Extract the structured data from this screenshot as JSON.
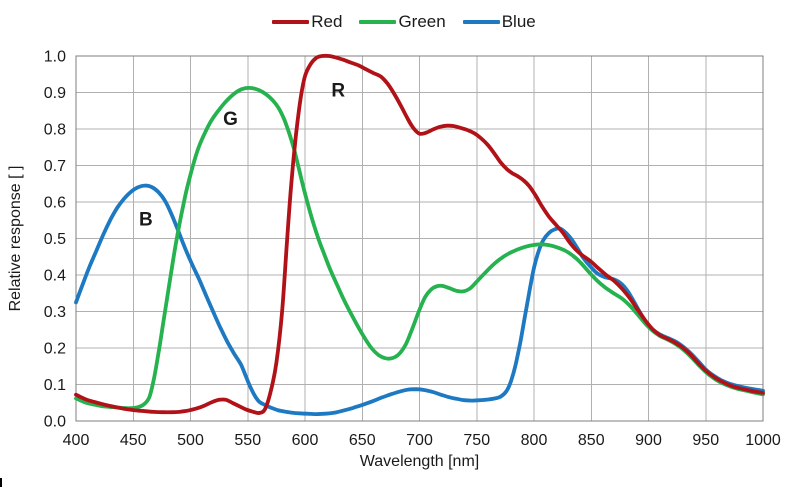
{
  "chart_data": {
    "type": "line",
    "title": "",
    "xlabel": "Wavelength [nm]",
    "ylabel": "Relative response [ ]",
    "xlim": [
      400,
      1000
    ],
    "ylim": [
      0.0,
      1.0
    ],
    "grid": true,
    "legend_position": "top-center",
    "x_ticks": [
      400,
      450,
      500,
      550,
      600,
      650,
      700,
      750,
      800,
      850,
      900,
      950,
      1000
    ],
    "x_tick_labels": [
      "400",
      "450",
      "500",
      "550",
      "600",
      "650",
      "700",
      "750",
      "800",
      "850",
      "900",
      "950",
      "1000"
    ],
    "y_ticks": [
      0.0,
      0.1,
      0.2,
      0.3,
      0.4,
      0.5,
      0.6,
      0.7,
      0.8,
      0.9,
      1.0
    ],
    "y_tick_labels": [
      "0.0",
      "0.1",
      "0.2",
      "0.3",
      "0.4",
      "0.5",
      "0.6",
      "0.7",
      "0.8",
      "0.9",
      "1.0"
    ],
    "series": [
      {
        "name": "Red",
        "color": "#b11218",
        "annotation": {
          "text": "R",
          "x": 629,
          "y": 0.905
        },
        "points": [
          [
            400,
            0.072
          ],
          [
            408,
            0.06
          ],
          [
            415,
            0.053
          ],
          [
            422,
            0.047
          ],
          [
            430,
            0.041
          ],
          [
            438,
            0.036
          ],
          [
            445,
            0.032
          ],
          [
            452,
            0.029
          ],
          [
            460,
            0.027
          ],
          [
            468,
            0.025
          ],
          [
            476,
            0.024
          ],
          [
            484,
            0.024
          ],
          [
            490,
            0.025
          ],
          [
            497,
            0.028
          ],
          [
            505,
            0.034
          ],
          [
            512,
            0.042
          ],
          [
            519,
            0.052
          ],
          [
            525,
            0.058
          ],
          [
            531,
            0.058
          ],
          [
            537,
            0.049
          ],
          [
            543,
            0.04
          ],
          [
            549,
            0.031
          ],
          [
            555,
            0.025
          ],
          [
            560,
            0.022
          ],
          [
            565,
            0.032
          ],
          [
            570,
            0.08
          ],
          [
            575,
            0.16
          ],
          [
            580,
            0.3
          ],
          [
            584,
            0.48
          ],
          [
            588,
            0.65
          ],
          [
            592,
            0.78
          ],
          [
            596,
            0.88
          ],
          [
            600,
            0.945
          ],
          [
            605,
            0.978
          ],
          [
            610,
            0.995
          ],
          [
            615,
            1.0
          ],
          [
            621,
            1.0
          ],
          [
            627,
            0.996
          ],
          [
            633,
            0.99
          ],
          [
            640,
            0.982
          ],
          [
            647,
            0.974
          ],
          [
            653,
            0.964
          ],
          [
            660,
            0.953
          ],
          [
            666,
            0.944
          ],
          [
            672,
            0.925
          ],
          [
            678,
            0.896
          ],
          [
            684,
            0.862
          ],
          [
            690,
            0.826
          ],
          [
            695,
            0.801
          ],
          [
            700,
            0.787
          ],
          [
            706,
            0.79
          ],
          [
            712,
            0.799
          ],
          [
            718,
            0.806
          ],
          [
            724,
            0.809
          ],
          [
            730,
            0.808
          ],
          [
            736,
            0.803
          ],
          [
            742,
            0.797
          ],
          [
            748,
            0.788
          ],
          [
            754,
            0.774
          ],
          [
            760,
            0.755
          ],
          [
            766,
            0.73
          ],
          [
            771,
            0.708
          ],
          [
            776,
            0.691
          ],
          [
            781,
            0.679
          ],
          [
            786,
            0.67
          ],
          [
            791,
            0.659
          ],
          [
            796,
            0.643
          ],
          [
            801,
            0.62
          ],
          [
            807,
            0.588
          ],
          [
            813,
            0.56
          ],
          [
            819,
            0.538
          ],
          [
            825,
            0.517
          ],
          [
            831,
            0.49
          ],
          [
            837,
            0.468
          ],
          [
            843,
            0.452
          ],
          [
            849,
            0.439
          ],
          [
            856,
            0.419
          ],
          [
            863,
            0.4
          ],
          [
            870,
            0.384
          ],
          [
            877,
            0.362
          ],
          [
            884,
            0.335
          ],
          [
            891,
            0.303
          ],
          [
            898,
            0.272
          ],
          [
            904,
            0.25
          ],
          [
            910,
            0.235
          ],
          [
            916,
            0.226
          ],
          [
            922,
            0.217
          ],
          [
            929,
            0.203
          ],
          [
            936,
            0.184
          ],
          [
            943,
            0.16
          ],
          [
            950,
            0.138
          ],
          [
            957,
            0.121
          ],
          [
            964,
            0.108
          ],
          [
            971,
            0.098
          ],
          [
            978,
            0.091
          ],
          [
            985,
            0.086
          ],
          [
            992,
            0.081
          ],
          [
            1000,
            0.077
          ]
        ]
      },
      {
        "name": "Green",
        "color": "#25b24f",
        "annotation": {
          "text": "G",
          "x": 535,
          "y": 0.828
        },
        "points": [
          [
            400,
            0.062
          ],
          [
            408,
            0.051
          ],
          [
            416,
            0.045
          ],
          [
            424,
            0.04
          ],
          [
            432,
            0.038
          ],
          [
            440,
            0.036
          ],
          [
            447,
            0.035
          ],
          [
            453,
            0.037
          ],
          [
            459,
            0.045
          ],
          [
            464,
            0.065
          ],
          [
            468,
            0.115
          ],
          [
            472,
            0.185
          ],
          [
            476,
            0.265
          ],
          [
            480,
            0.345
          ],
          [
            484,
            0.425
          ],
          [
            488,
            0.5
          ],
          [
            492,
            0.565
          ],
          [
            496,
            0.625
          ],
          [
            500,
            0.675
          ],
          [
            504,
            0.72
          ],
          [
            508,
            0.757
          ],
          [
            513,
            0.792
          ],
          [
            518,
            0.822
          ],
          [
            524,
            0.849
          ],
          [
            530,
            0.872
          ],
          [
            536,
            0.891
          ],
          [
            542,
            0.905
          ],
          [
            548,
            0.912
          ],
          [
            554,
            0.912
          ],
          [
            560,
            0.906
          ],
          [
            566,
            0.895
          ],
          [
            572,
            0.878
          ],
          [
            577,
            0.857
          ],
          [
            582,
            0.825
          ],
          [
            586,
            0.79
          ],
          [
            590,
            0.75
          ],
          [
            594,
            0.7
          ],
          [
            598,
            0.648
          ],
          [
            602,
            0.6
          ],
          [
            607,
            0.545
          ],
          [
            612,
            0.497
          ],
          [
            617,
            0.455
          ],
          [
            622,
            0.415
          ],
          [
            628,
            0.373
          ],
          [
            634,
            0.332
          ],
          [
            640,
            0.295
          ],
          [
            646,
            0.26
          ],
          [
            652,
            0.228
          ],
          [
            658,
            0.2
          ],
          [
            664,
            0.181
          ],
          [
            670,
            0.172
          ],
          [
            676,
            0.172
          ],
          [
            682,
            0.183
          ],
          [
            688,
            0.21
          ],
          [
            694,
            0.255
          ],
          [
            700,
            0.305
          ],
          [
            705,
            0.34
          ],
          [
            710,
            0.36
          ],
          [
            715,
            0.369
          ],
          [
            720,
            0.37
          ],
          [
            726,
            0.364
          ],
          [
            732,
            0.357
          ],
          [
            738,
            0.355
          ],
          [
            744,
            0.363
          ],
          [
            750,
            0.382
          ],
          [
            757,
            0.405
          ],
          [
            764,
            0.427
          ],
          [
            771,
            0.445
          ],
          [
            778,
            0.459
          ],
          [
            785,
            0.469
          ],
          [
            792,
            0.477
          ],
          [
            799,
            0.482
          ],
          [
            806,
            0.484
          ],
          [
            813,
            0.482
          ],
          [
            820,
            0.476
          ],
          [
            827,
            0.467
          ],
          [
            834,
            0.453
          ],
          [
            841,
            0.433
          ],
          [
            848,
            0.408
          ],
          [
            855,
            0.385
          ],
          [
            862,
            0.366
          ],
          [
            870,
            0.349
          ],
          [
            877,
            0.335
          ],
          [
            884,
            0.315
          ],
          [
            891,
            0.29
          ],
          [
            898,
            0.264
          ],
          [
            904,
            0.246
          ],
          [
            910,
            0.233
          ],
          [
            916,
            0.224
          ],
          [
            922,
            0.214
          ],
          [
            929,
            0.199
          ],
          [
            936,
            0.179
          ],
          [
            943,
            0.156
          ],
          [
            950,
            0.134
          ],
          [
            957,
            0.117
          ],
          [
            964,
            0.104
          ],
          [
            971,
            0.095
          ],
          [
            978,
            0.088
          ],
          [
            985,
            0.083
          ],
          [
            992,
            0.078
          ],
          [
            1000,
            0.073
          ]
        ]
      },
      {
        "name": "Blue",
        "color": "#1d79c2",
        "annotation": {
          "text": "B",
          "x": 461,
          "y": 0.552
        },
        "points": [
          [
            400,
            0.325
          ],
          [
            406,
            0.376
          ],
          [
            412,
            0.424
          ],
          [
            418,
            0.468
          ],
          [
            424,
            0.512
          ],
          [
            430,
            0.551
          ],
          [
            436,
            0.584
          ],
          [
            442,
            0.609
          ],
          [
            448,
            0.628
          ],
          [
            454,
            0.64
          ],
          [
            460,
            0.645
          ],
          [
            466,
            0.641
          ],
          [
            472,
            0.627
          ],
          [
            478,
            0.602
          ],
          [
            484,
            0.562
          ],
          [
            490,
            0.515
          ],
          [
            496,
            0.468
          ],
          [
            502,
            0.425
          ],
          [
            508,
            0.385
          ],
          [
            514,
            0.341
          ],
          [
            520,
            0.298
          ],
          [
            526,
            0.256
          ],
          [
            532,
            0.218
          ],
          [
            538,
            0.185
          ],
          [
            544,
            0.155
          ],
          [
            548,
            0.125
          ],
          [
            552,
            0.095
          ],
          [
            556,
            0.07
          ],
          [
            560,
            0.053
          ],
          [
            565,
            0.044
          ],
          [
            570,
            0.037
          ],
          [
            576,
            0.03
          ],
          [
            582,
            0.026
          ],
          [
            588,
            0.023
          ],
          [
            595,
            0.021
          ],
          [
            602,
            0.02
          ],
          [
            610,
            0.019
          ],
          [
            618,
            0.02
          ],
          [
            626,
            0.023
          ],
          [
            634,
            0.029
          ],
          [
            642,
            0.036
          ],
          [
            650,
            0.044
          ],
          [
            658,
            0.053
          ],
          [
            666,
            0.063
          ],
          [
            674,
            0.072
          ],
          [
            682,
            0.08
          ],
          [
            690,
            0.086
          ],
          [
            697,
            0.087
          ],
          [
            704,
            0.085
          ],
          [
            711,
            0.08
          ],
          [
            718,
            0.073
          ],
          [
            725,
            0.066
          ],
          [
            732,
            0.061
          ],
          [
            739,
            0.057
          ],
          [
            746,
            0.056
          ],
          [
            753,
            0.057
          ],
          [
            760,
            0.059
          ],
          [
            766,
            0.062
          ],
          [
            771,
            0.067
          ],
          [
            776,
            0.082
          ],
          [
            780,
            0.11
          ],
          [
            784,
            0.155
          ],
          [
            788,
            0.215
          ],
          [
            792,
            0.285
          ],
          [
            796,
            0.355
          ],
          [
            800,
            0.42
          ],
          [
            804,
            0.465
          ],
          [
            808,
            0.495
          ],
          [
            813,
            0.515
          ],
          [
            818,
            0.525
          ],
          [
            823,
            0.527
          ],
          [
            828,
            0.515
          ],
          [
            833,
            0.497
          ],
          [
            838,
            0.473
          ],
          [
            843,
            0.447
          ],
          [
            849,
            0.424
          ],
          [
            855,
            0.405
          ],
          [
            862,
            0.394
          ],
          [
            869,
            0.389
          ],
          [
            876,
            0.377
          ],
          [
            882,
            0.355
          ],
          [
            888,
            0.323
          ],
          [
            894,
            0.29
          ],
          [
            900,
            0.262
          ],
          [
            906,
            0.245
          ],
          [
            912,
            0.234
          ],
          [
            918,
            0.226
          ],
          [
            924,
            0.217
          ],
          [
            930,
            0.204
          ],
          [
            937,
            0.185
          ],
          [
            944,
            0.162
          ],
          [
            950,
            0.141
          ],
          [
            957,
            0.124
          ],
          [
            964,
            0.111
          ],
          [
            971,
            0.102
          ],
          [
            978,
            0.096
          ],
          [
            985,
            0.091
          ],
          [
            992,
            0.087
          ],
          [
            1000,
            0.083
          ]
        ]
      }
    ]
  }
}
